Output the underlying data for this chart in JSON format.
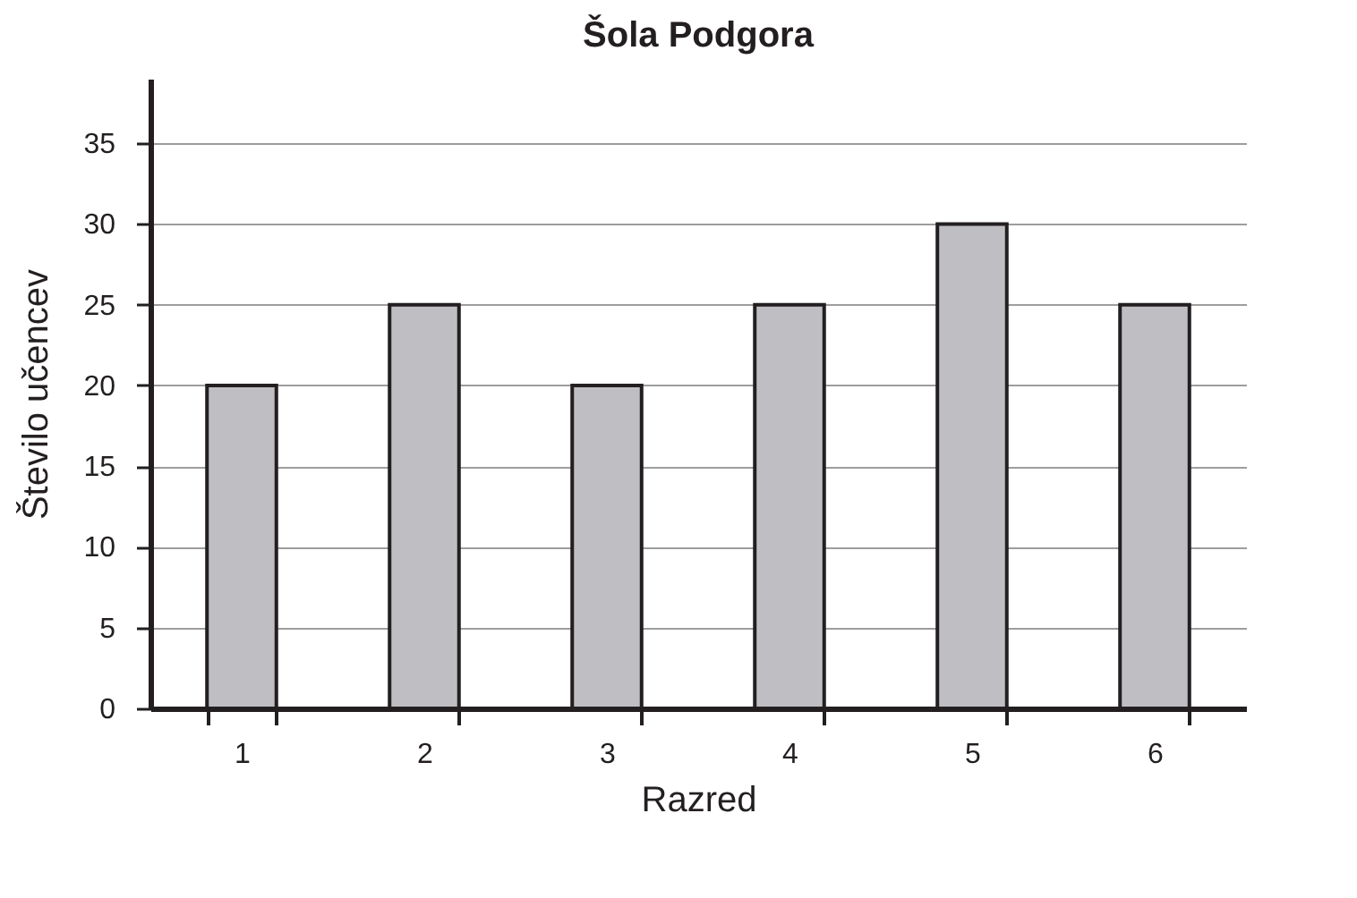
{
  "chart_data": {
    "type": "bar",
    "title": "Šola Podgora",
    "xlabel": "Razred",
    "ylabel": "Število učencev",
    "categories": [
      "1",
      "2",
      "3",
      "4",
      "5",
      "6"
    ],
    "values": [
      20,
      25,
      20,
      25,
      30,
      25
    ],
    "color": "#bfbfc3",
    "ylim": [
      0,
      39
    ],
    "yticks": [
      0,
      5,
      10,
      15,
      20,
      25,
      30,
      35
    ],
    "grid": "y"
  }
}
